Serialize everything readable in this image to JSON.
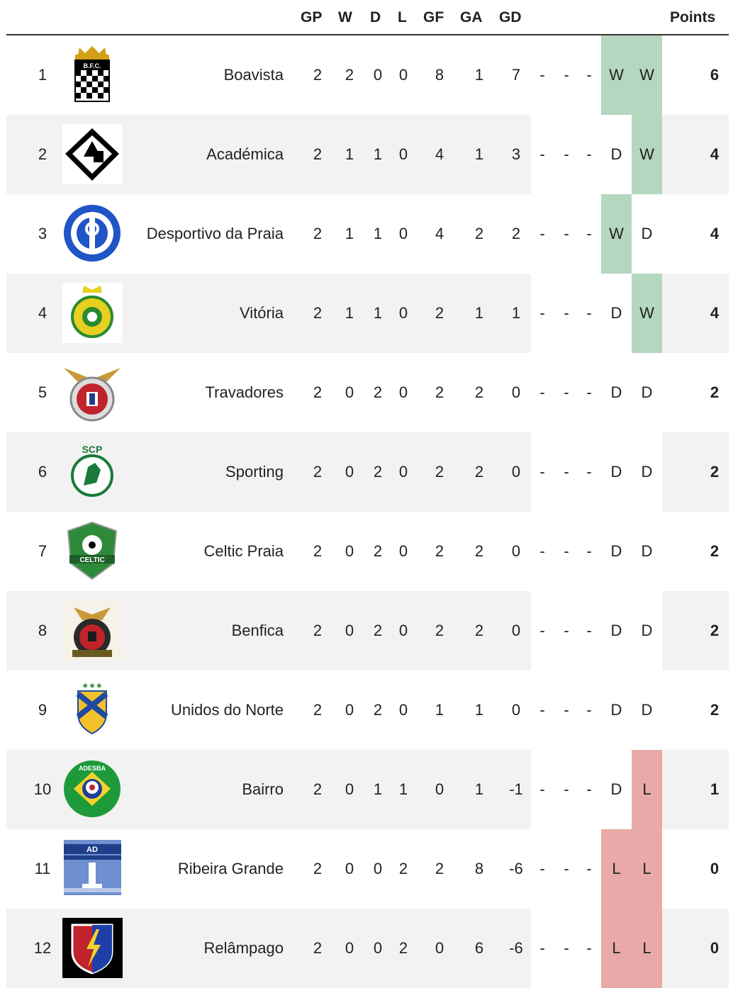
{
  "headers": {
    "gp": "GP",
    "w": "W",
    "d": "D",
    "l": "L",
    "gf": "GF",
    "ga": "GA",
    "gd": "GD",
    "points": "Points"
  },
  "colors": {
    "win": "#b4d7bf",
    "loss": "#e8aaa8",
    "band": "#f2f2f2"
  },
  "rows": [
    {
      "pos": "1",
      "team": "Boavista",
      "gp": "2",
      "w": "2",
      "d": "0",
      "l": "0",
      "gf": "8",
      "ga": "1",
      "gd": "7",
      "f1": "-",
      "f2": "-",
      "f3": "-",
      "f4": "W",
      "f5": "W",
      "pts": "6",
      "logo_icon": "boavista-crest-icon"
    },
    {
      "pos": "2",
      "team": "Académica",
      "gp": "2",
      "w": "1",
      "d": "1",
      "l": "0",
      "gf": "4",
      "ga": "1",
      "gd": "3",
      "f1": "-",
      "f2": "-",
      "f3": "-",
      "f4": "D",
      "f5": "W",
      "pts": "4",
      "logo_icon": "academica-crest-icon"
    },
    {
      "pos": "3",
      "team": "Desportivo da Praia",
      "gp": "2",
      "w": "1",
      "d": "1",
      "l": "0",
      "gf": "4",
      "ga": "2",
      "gd": "2",
      "f1": "-",
      "f2": "-",
      "f3": "-",
      "f4": "W",
      "f5": "D",
      "pts": "4",
      "logo_icon": "desportivo-crest-icon"
    },
    {
      "pos": "4",
      "team": "Vitória",
      "gp": "2",
      "w": "1",
      "d": "1",
      "l": "0",
      "gf": "2",
      "ga": "1",
      "gd": "1",
      "f1": "-",
      "f2": "-",
      "f3": "-",
      "f4": "D",
      "f5": "W",
      "pts": "4",
      "logo_icon": "vitoria-crest-icon"
    },
    {
      "pos": "5",
      "team": "Travadores",
      "gp": "2",
      "w": "0",
      "d": "2",
      "l": "0",
      "gf": "2",
      "ga": "2",
      "gd": "0",
      "f1": "-",
      "f2": "-",
      "f3": "-",
      "f4": "D",
      "f5": "D",
      "pts": "2",
      "logo_icon": "travadores-crest-icon"
    },
    {
      "pos": "6",
      "team": "Sporting",
      "gp": "2",
      "w": "0",
      "d": "2",
      "l": "0",
      "gf": "2",
      "ga": "2",
      "gd": "0",
      "f1": "-",
      "f2": "-",
      "f3": "-",
      "f4": "D",
      "f5": "D",
      "pts": "2",
      "logo_icon": "sporting-crest-icon"
    },
    {
      "pos": "7",
      "team": "Celtic Praia",
      "gp": "2",
      "w": "0",
      "d": "2",
      "l": "0",
      "gf": "2",
      "ga": "2",
      "gd": "0",
      "f1": "-",
      "f2": "-",
      "f3": "-",
      "f4": "D",
      "f5": "D",
      "pts": "2",
      "logo_icon": "celtic-crest-icon"
    },
    {
      "pos": "8",
      "team": "Benfica",
      "gp": "2",
      "w": "0",
      "d": "2",
      "l": "0",
      "gf": "2",
      "ga": "2",
      "gd": "0",
      "f1": "-",
      "f2": "-",
      "f3": "-",
      "f4": "D",
      "f5": "D",
      "pts": "2",
      "logo_icon": "benfica-crest-icon"
    },
    {
      "pos": "9",
      "team": "Unidos do Norte",
      "gp": "2",
      "w": "0",
      "d": "2",
      "l": "0",
      "gf": "1",
      "ga": "1",
      "gd": "0",
      "f1": "-",
      "f2": "-",
      "f3": "-",
      "f4": "D",
      "f5": "D",
      "pts": "2",
      "logo_icon": "unidos-crest-icon"
    },
    {
      "pos": "10",
      "team": "Bairro",
      "gp": "2",
      "w": "0",
      "d": "1",
      "l": "1",
      "gf": "0",
      "ga": "1",
      "gd": "-1",
      "f1": "-",
      "f2": "-",
      "f3": "-",
      "f4": "D",
      "f5": "L",
      "pts": "1",
      "logo_icon": "bairro-crest-icon"
    },
    {
      "pos": "11",
      "team": "Ribeira Grande",
      "gp": "2",
      "w": "0",
      "d": "0",
      "l": "2",
      "gf": "2",
      "ga": "8",
      "gd": "-6",
      "f1": "-",
      "f2": "-",
      "f3": "-",
      "f4": "L",
      "f5": "L",
      "pts": "0",
      "logo_icon": "ribeira-grande-crest-icon"
    },
    {
      "pos": "12",
      "team": "Relâmpago",
      "gp": "2",
      "w": "0",
      "d": "0",
      "l": "2",
      "gf": "0",
      "ga": "6",
      "gd": "-6",
      "f1": "-",
      "f2": "-",
      "f3": "-",
      "f4": "L",
      "f5": "L",
      "pts": "0",
      "logo_icon": "relampago-crest-icon"
    }
  ]
}
